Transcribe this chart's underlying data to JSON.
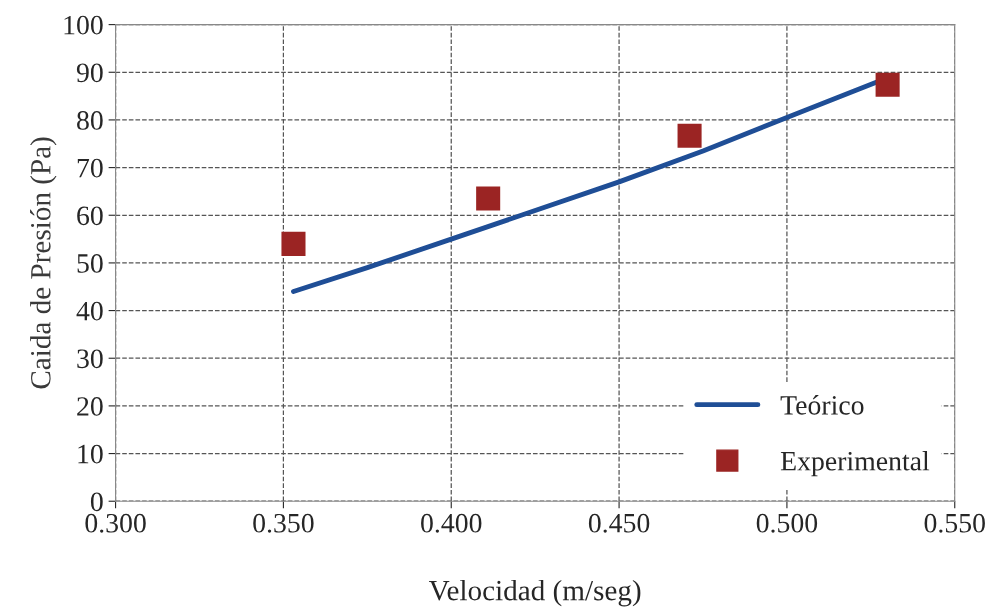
{
  "chart_data": {
    "type": "scatter",
    "xlabel": "Velocidad (m/seg)",
    "ylabel": "Caida de Presión (Pa)",
    "series": [
      {
        "name": "Teórico",
        "type": "line",
        "color": "#1f4e96",
        "marker": "none",
        "x": [
          0.353,
          0.375,
          0.4,
          0.425,
          0.45,
          0.475,
          0.5,
          0.527
        ],
        "values": [
          44,
          49,
          55,
          61,
          67,
          73.5,
          80.5,
          88
        ]
      },
      {
        "name": "Experimental",
        "color": "#9b2423",
        "marker": "square",
        "x": [
          0.353,
          0.411,
          0.471,
          0.53
        ],
        "values": [
          54,
          63.5,
          76.7,
          87.4
        ]
      }
    ],
    "xlim": [
      0.3,
      0.55
    ],
    "xticks": [
      {
        "value": 0.3,
        "label": "0.300"
      },
      {
        "value": 0.35,
        "label": "0.350"
      },
      {
        "value": 0.4,
        "label": "0.400"
      },
      {
        "value": 0.45,
        "label": "0.450"
      },
      {
        "value": 0.5,
        "label": "0.500"
      },
      {
        "value": 0.55,
        "label": "0.550"
      }
    ],
    "ylim": [
      0,
      100
    ],
    "yticks": [
      0,
      10,
      20,
      30,
      40,
      50,
      60,
      70,
      80,
      90,
      100
    ],
    "grid": true,
    "legend": "bottom right"
  }
}
